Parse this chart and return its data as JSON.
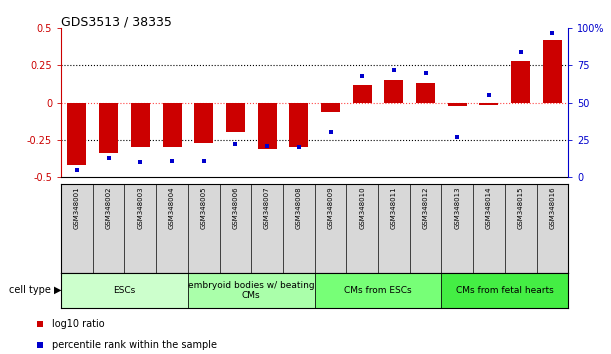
{
  "title": "GDS3513 / 38335",
  "samples": [
    "GSM348001",
    "GSM348002",
    "GSM348003",
    "GSM348004",
    "GSM348005",
    "GSM348006",
    "GSM348007",
    "GSM348008",
    "GSM348009",
    "GSM348010",
    "GSM348011",
    "GSM348012",
    "GSM348013",
    "GSM348014",
    "GSM348015",
    "GSM348016"
  ],
  "log10_ratio": [
    -0.42,
    -0.34,
    -0.3,
    -0.3,
    -0.27,
    -0.2,
    -0.31,
    -0.3,
    -0.06,
    0.12,
    0.15,
    0.13,
    -0.02,
    -0.015,
    0.28,
    0.42
  ],
  "percentile_rank": [
    5,
    13,
    10,
    11,
    11,
    22,
    21,
    20,
    30,
    68,
    72,
    70,
    27,
    55,
    84,
    97
  ],
  "bar_color": "#cc0000",
  "dot_color": "#0000cc",
  "cell_type_groups": [
    {
      "label": "ESCs",
      "start": 0,
      "end": 3
    },
    {
      "label": "embryoid bodies w/ beating\nCMs",
      "start": 4,
      "end": 7
    },
    {
      "label": "CMs from ESCs",
      "start": 8,
      "end": 11
    },
    {
      "label": "CMs from fetal hearts",
      "start": 12,
      "end": 15
    }
  ],
  "group_colors": [
    "#ccffcc",
    "#aaffaa",
    "#77ff77",
    "#44ee44"
  ],
  "ylim": [
    -0.5,
    0.5
  ],
  "y2lim": [
    0,
    100
  ],
  "yticks": [
    -0.5,
    -0.25,
    0,
    0.25,
    0.5
  ],
  "y2ticks": [
    0,
    25,
    50,
    75,
    100
  ],
  "ytick_labels": [
    "-0.5",
    "-0.25",
    "0",
    "0.25",
    "0.5"
  ],
  "y2tick_labels": [
    "0",
    "25",
    "50",
    "75",
    "100%"
  ],
  "hlines_dotted": [
    -0.25,
    0.25
  ],
  "hline_red": 0,
  "figsize": [
    6.11,
    3.54
  ],
  "dpi": 100
}
